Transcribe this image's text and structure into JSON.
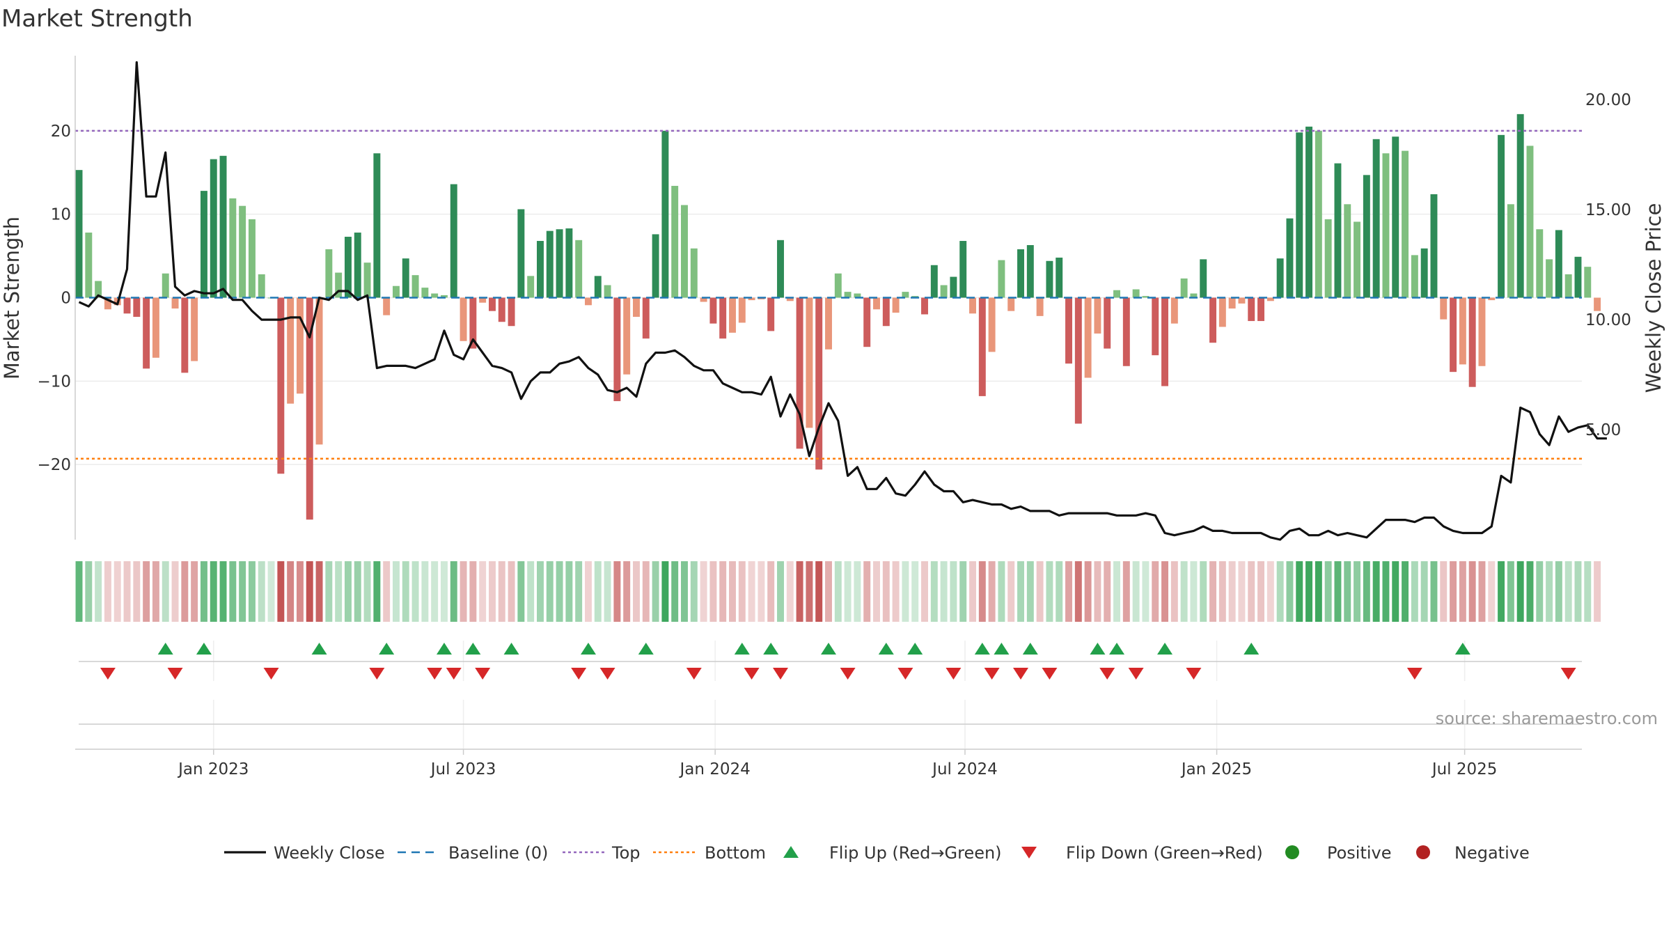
{
  "chart_data": {
    "type": "bar",
    "title": "Market Strength",
    "ylabel_left": "Market Strength",
    "ylabel_right": "Weekly Close Price",
    "source": "source: sharemaestro.com",
    "left_ylim": [
      -29,
      29
    ],
    "right_ylim": [
      0,
      22
    ],
    "left_ticks": [
      20,
      10,
      0,
      -10,
      -20
    ],
    "left_tick_labels": [
      "20",
      "10",
      "0",
      "−10",
      "−20"
    ],
    "right_ticks": [
      20,
      15,
      10,
      5
    ],
    "right_tick_labels": [
      "20.00",
      "15.00",
      "10.00",
      "5.00"
    ],
    "x_tick_labels": [
      "Jan 2023",
      "Jul 2023",
      "Jan 2024",
      "Jul 2024",
      "Jan 2025",
      "Jul 2025"
    ],
    "x_tick_positions": [
      14,
      40,
      66.2,
      92.2,
      118.4,
      144.2
    ],
    "x_range": [
      -0.4,
      156.4
    ],
    "grid": true,
    "top_line": 20,
    "bottom_line": -19.3,
    "legend_position": "bottom-center",
    "colors": {
      "strong_pos": "#2e8b57",
      "weak_pos": "#7fbf7f",
      "strong_neg": "#cd5c5c",
      "weak_neg": "#e9967a",
      "price": "#111111",
      "baseline": "#1f77b4",
      "top": "#9467bd",
      "bottom": "#ff7f0e",
      "flip_up": "#22a04a",
      "flip_down": "#d62728",
      "positive_dot": "#228b22",
      "negative_dot": "#b22222"
    },
    "legend": [
      {
        "key": "close",
        "label": "Weekly Close"
      },
      {
        "key": "baseline",
        "label": "Baseline (0)"
      },
      {
        "key": "top",
        "label": "Top"
      },
      {
        "key": "bottom",
        "label": "Bottom"
      },
      {
        "key": "flip_up",
        "label": "Flip Up (Red→Green)"
      },
      {
        "key": "flip_down",
        "label": "Flip Down (Green→Red)"
      },
      {
        "key": "positive",
        "label": "Positive"
      },
      {
        "key": "negative",
        "label": "Negative"
      }
    ],
    "strength": [
      15.3,
      7.8,
      2,
      -1.4,
      -0.9,
      -1.9,
      -2.3,
      -8.5,
      -7.2,
      2.9,
      -1.3,
      -9,
      -7.6,
      12.8,
      16.6,
      17,
      11.9,
      11,
      9.4,
      2.8,
      0,
      -21.1,
      -12.7,
      -11.5,
      -26.6,
      -17.6,
      5.8,
      3,
      7.3,
      7.8,
      4.2,
      17.3,
      -2.1,
      1.4,
      4.7,
      2.7,
      1.2,
      0.5,
      0.3,
      13.6,
      -5.2,
      -6.1,
      -0.6,
      -1.6,
      -2.9,
      -3.4,
      10.6,
      2.6,
      6.8,
      8,
      8.2,
      8.3,
      6.9,
      -0.9,
      2.6,
      1.5,
      -12.4,
      -9.2,
      -2.3,
      -4.9,
      7.6,
      20,
      13.4,
      11.1,
      5.9,
      -0.5,
      -3.1,
      -4.9,
      -4.2,
      -3,
      -0.3,
      -0.2,
      -4,
      6.9,
      -0.4,
      -18.1,
      -15.6,
      -20.6,
      -6.2,
      2.9,
      0.7,
      0.5,
      -5.9,
      -1.4,
      -3.4,
      -1.8,
      0.7,
      0.2,
      -2,
      3.9,
      1.5,
      2.5,
      6.8,
      -1.9,
      -11.8,
      -6.5,
      4.5,
      -1.6,
      5.8,
      6.3,
      -2.2,
      4.4,
      4.8,
      -7.9,
      -15.1,
      -9.6,
      -4.3,
      -6.1,
      0.9,
      -8.2,
      1,
      0.2,
      -6.9,
      -10.6,
      -3.1,
      2.3,
      0.5,
      4.6,
      -5.4,
      -3.5,
      -1.3,
      -0.7,
      -2.8,
      -2.8,
      -0.4,
      4.7,
      9.5,
      19.8,
      20.5,
      20,
      9.4,
      16.1,
      11.2,
      9.1,
      14.7,
      19,
      17.3,
      19.3,
      17.6,
      5.1,
      5.9,
      12.4,
      -2.6,
      -8.9,
      -8,
      -10.7,
      -8.2,
      -0.3,
      19.5,
      11.2,
      22,
      18.2,
      8.2,
      4.6,
      8.1,
      2.8,
      4.9,
      3.7,
      -1.6
    ],
    "close": [
      10.8,
      10.6,
      11.1,
      10.9,
      10.7,
      12.3,
      21.7,
      15.6,
      15.6,
      17.6,
      11.5,
      11.1,
      11.3,
      11.2,
      11.2,
      11.4,
      10.9,
      10.9,
      10.4,
      10,
      10,
      10,
      10.1,
      10.1,
      9.2,
      11,
      10.9,
      11.3,
      11.3,
      10.9,
      11.1,
      7.8,
      7.9,
      7.9,
      7.9,
      7.8,
      8,
      8.2,
      9.5,
      8.4,
      8.2,
      9.1,
      8.5,
      7.9,
      7.8,
      7.6,
      6.4,
      7.2,
      7.6,
      7.6,
      8,
      8.1,
      8.3,
      7.8,
      7.5,
      6.8,
      6.7,
      6.9,
      6.5,
      8,
      8.5,
      8.5,
      8.6,
      8.3,
      7.9,
      7.7,
      7.7,
      7.1,
      6.9,
      6.7,
      6.7,
      6.6,
      7.4,
      5.6,
      6.6,
      5.7,
      3.8,
      5.1,
      6.2,
      5.4,
      2.9,
      3.3,
      2.3,
      2.3,
      2.8,
      2.1,
      2,
      2.5,
      3.1,
      2.5,
      2.2,
      2.2,
      1.7,
      1.8,
      1.7,
      1.6,
      1.6,
      1.4,
      1.5,
      1.3,
      1.3,
      1.3,
      1.1,
      1.2,
      1.2,
      1.2,
      1.2,
      1.2,
      1.1,
      1.1,
      1.1,
      1.2,
      1.1,
      0.3,
      0.2,
      0.3,
      0.4,
      0.6,
      0.4,
      0.4,
      0.3,
      0.3,
      0.3,
      0.3,
      0.1,
      0,
      0.4,
      0.5,
      0.2,
      0.2,
      0.4,
      0.2,
      0.3,
      0.2,
      0.1,
      0.5,
      0.9,
      0.9,
      0.9,
      0.8,
      1,
      1,
      0.6,
      0.4,
      0.3,
      0.3,
      0.3,
      0.6,
      2.9,
      2.6,
      6,
      5.8,
      4.8,
      4.3,
      5.6,
      4.9,
      5.1,
      5.2,
      4.6,
      4.6
    ],
    "flip_up": [
      9,
      13,
      25,
      32,
      38,
      41,
      45,
      53,
      59,
      69,
      72,
      78,
      84,
      87,
      94,
      96,
      99,
      106,
      108,
      113,
      122,
      144
    ],
    "flip_down": [
      3,
      10,
      20,
      31,
      37,
      39,
      42,
      52,
      55,
      64,
      70,
      73,
      80,
      86,
      91,
      95,
      98,
      101,
      107,
      110,
      116,
      139,
      155
    ]
  }
}
